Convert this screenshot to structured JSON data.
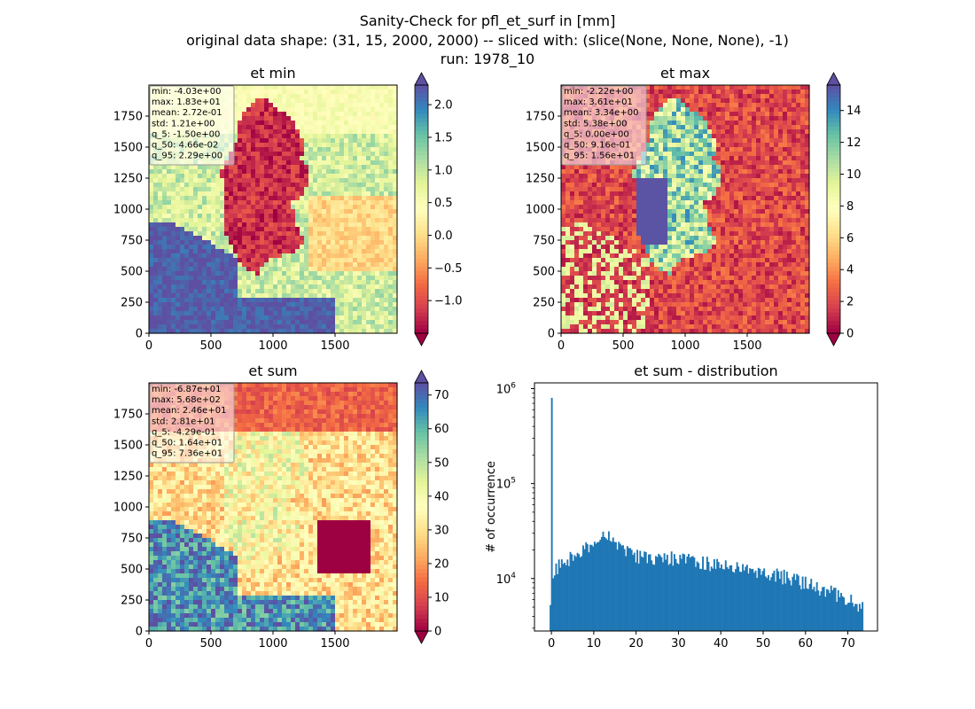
{
  "figure": {
    "title_lines": [
      "Sanity-Check for pfl_et_surf in [mm]",
      "original data shape: (31, 15, 2000, 2000) -- sliced with: (slice(None, None, None), -1)",
      "run: 1978_10"
    ]
  },
  "colormap": {
    "name": "Spectral",
    "stops": [
      "#9e0142",
      "#d53e4f",
      "#f46d43",
      "#fdae61",
      "#fee08b",
      "#ffffbf",
      "#e6f598",
      "#abdda4",
      "#66c2a5",
      "#3288bd",
      "#5e4fa2"
    ]
  },
  "chart_data": [
    {
      "type": "heatmap",
      "title": "et min",
      "xlim": [
        0,
        2000
      ],
      "ylim": [
        0,
        2000
      ],
      "xticks": [
        0,
        500,
        1000,
        1500
      ],
      "yticks": [
        0,
        250,
        500,
        750,
        1000,
        1250,
        1500,
        1750
      ],
      "colorbar": {
        "vmin": -1.5,
        "vmax": 2.3,
        "ticks": [
          2.0,
          1.5,
          1.0,
          0.5,
          0.0,
          -0.5,
          -1.0
        ],
        "tick_labels": [
          "2.0",
          "1.5",
          "1.0",
          "0.5",
          "0.0",
          "−0.5",
          "−1.0"
        ],
        "extend": "both"
      },
      "stats": [
        "min: -4.03e+00",
        "max: 1.83e+01",
        "mean: 2.72e-01",
        "std: 1.21e+00",
        "q_5: -1.50e+00",
        "q_50: 4.66e-02",
        "q_95: 2.29e+00"
      ],
      "field": "min"
    },
    {
      "type": "heatmap",
      "title": "et max",
      "xlim": [
        0,
        2000
      ],
      "ylim": [
        0,
        2000
      ],
      "xticks": [
        0,
        500,
        1000,
        1500
      ],
      "yticks": [
        0,
        250,
        500,
        750,
        1000,
        1250,
        1500,
        1750
      ],
      "colorbar": {
        "vmin": 0,
        "vmax": 15.6,
        "ticks": [
          14,
          12,
          10,
          8,
          6,
          4,
          2,
          0
        ],
        "tick_labels": [
          "14",
          "12",
          "10",
          "8",
          "6",
          "4",
          "2",
          "0"
        ],
        "extend": "both"
      },
      "stats": [
        "min: -2.22e+00",
        "max: 3.61e+01",
        "mean: 3.34e+00",
        "std: 5.38e+00",
        "q_5: 0.00e+00",
        "q_50: 9.16e-01",
        "q_95: 1.56e+01"
      ],
      "field": "max"
    },
    {
      "type": "heatmap",
      "title": "et sum",
      "xlim": [
        0,
        2000
      ],
      "ylim": [
        0,
        2000
      ],
      "xticks": [
        0,
        500,
        1000,
        1500
      ],
      "yticks": [
        0,
        250,
        500,
        750,
        1000,
        1250,
        1500,
        1750
      ],
      "colorbar": {
        "vmin": 0,
        "vmax": 73.6,
        "ticks": [
          70,
          60,
          50,
          40,
          30,
          20,
          10,
          0
        ],
        "tick_labels": [
          "70",
          "60",
          "50",
          "40",
          "30",
          "20",
          "10",
          "0"
        ],
        "extend": "both"
      },
      "stats": [
        "min: -6.87e+01",
        "max: 5.68e+02",
        "mean: 2.46e+01",
        "std: 2.81e+01",
        "q_5: -4.29e-01",
        "q_50: 1.64e+01",
        "q_95: 7.36e+01"
      ],
      "field": "sum"
    },
    {
      "type": "bar",
      "title": "et sum - distribution",
      "ylabel": "# of occurrence",
      "xlabel": "",
      "yscale": "log",
      "xlim": [
        -4,
        77
      ],
      "ylim": [
        2800,
        1150000
      ],
      "xticks": [
        0,
        10,
        20,
        30,
        40,
        50,
        60,
        70
      ],
      "yticks": [
        10000,
        100000,
        1000000
      ],
      "ytick_labels": [
        {
          "base": "10",
          "exp": "4"
        },
        {
          "base": "10",
          "exp": "5"
        },
        {
          "base": "10",
          "exp": "6"
        }
      ],
      "bin_range": [
        -0.43,
        73.6
      ],
      "spike": {
        "x": 0,
        "value": 800000
      },
      "profile_x": [
        0,
        2,
        5,
        8,
        11,
        13,
        14,
        16,
        20,
        25,
        30,
        35,
        40,
        45,
        50,
        55,
        60,
        65,
        70,
        73.6
      ],
      "profile_y": [
        11500,
        14000,
        17000,
        21000,
        26000,
        30000,
        28000,
        21000,
        17500,
        16500,
        16500,
        15000,
        14000,
        12500,
        11500,
        10500,
        9000,
        7500,
        6000,
        5200
      ],
      "color": "#1f77b4"
    }
  ]
}
